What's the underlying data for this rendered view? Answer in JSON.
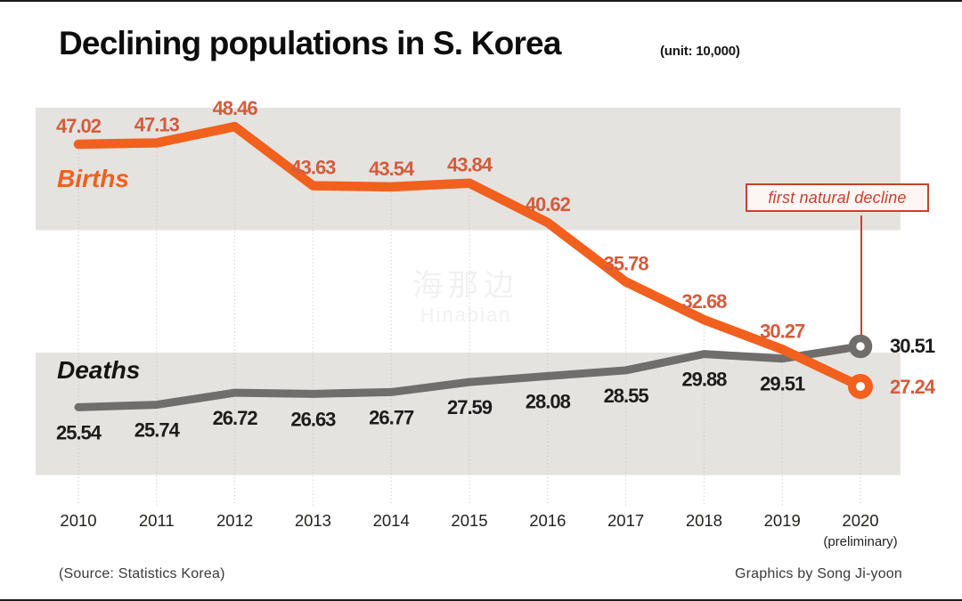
{
  "header": {
    "title": "Declining populations in S. Korea",
    "unit_label": "(unit: 10,000)"
  },
  "footer": {
    "source": "(Source: Statistics Korea)",
    "credit": "Graphics by Song Ji-yoon"
  },
  "watermark": {
    "line1": "海那边",
    "line2": "Hinabian"
  },
  "chart_data": {
    "type": "line",
    "title": "Declining populations in S. Korea",
    "unit": "(unit: 10,000)",
    "x": [
      2010,
      2011,
      2012,
      2013,
      2014,
      2015,
      2016,
      2017,
      2018,
      2019,
      2020
    ],
    "x_tick_labels": [
      "2010",
      "2011",
      "2012",
      "2013",
      "2014",
      "2015",
      "2016",
      "2017",
      "2018",
      "2019",
      "2020"
    ],
    "x_last_note": "(preliminary)",
    "series": [
      {
        "name": "Births",
        "color": "#f2601d",
        "label_color": "#d45c3d",
        "name_color": "#f2601d",
        "endpoint_marker": "open-circle",
        "values": [
          47.02,
          47.13,
          48.46,
          43.63,
          43.54,
          43.84,
          40.62,
          35.78,
          32.68,
          30.27,
          27.24
        ]
      },
      {
        "name": "Deaths",
        "color": "#6f6e6c",
        "label_color": "#1c1c1a",
        "name_color": "#15150f",
        "endpoint_marker": "open-circle",
        "values": [
          25.54,
          25.74,
          26.72,
          26.63,
          26.77,
          27.59,
          28.08,
          28.55,
          29.88,
          29.51,
          30.51
        ]
      }
    ],
    "ylim": [
      18,
      52
    ],
    "background_bands": {
      "color": "#e5e3e0",
      "value_ranges": [
        [
          40,
          50
        ],
        [
          20,
          30
        ]
      ]
    },
    "grid": "dotted vertical droplines from Births points to x-axis",
    "legend_position": "inline series labels on plot",
    "annotation": {
      "text": "first natural decline",
      "target_year": 2020,
      "color": "#c8402e",
      "bg": "#fdf6f3"
    }
  }
}
